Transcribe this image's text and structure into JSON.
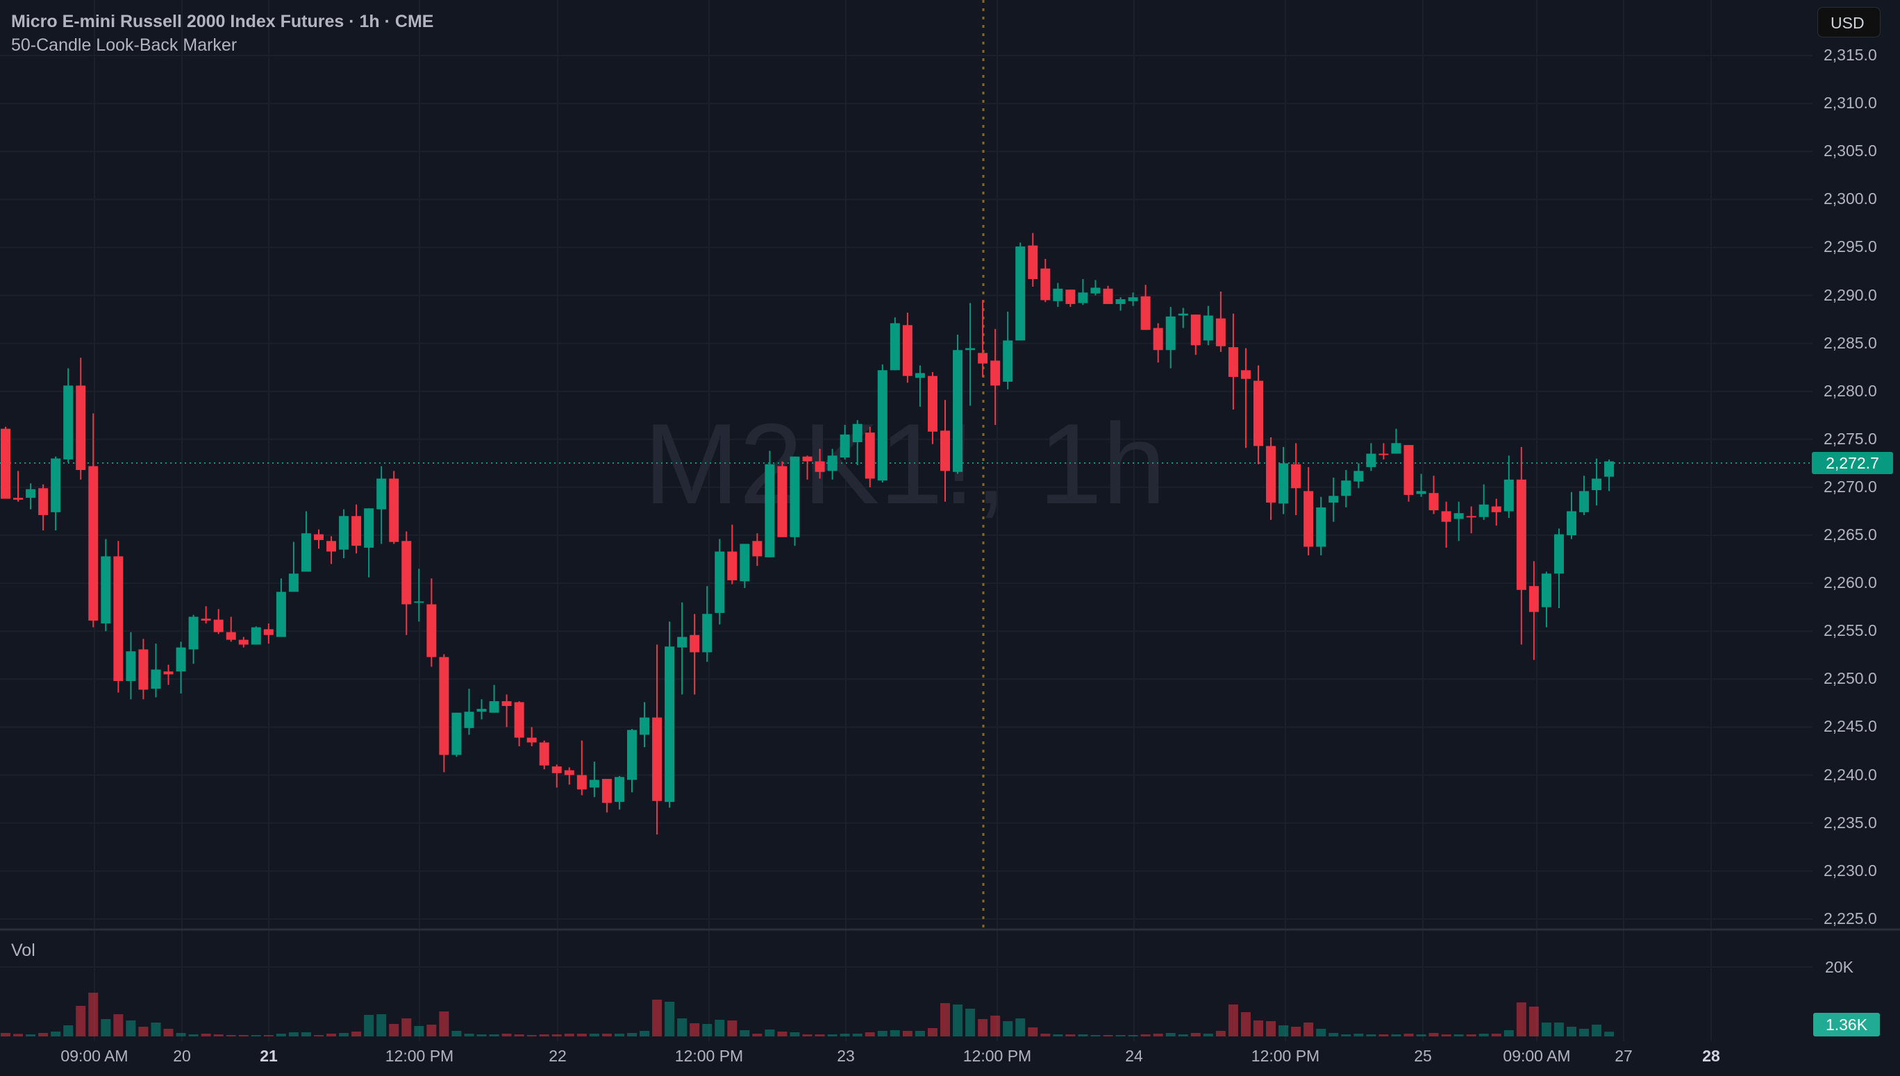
{
  "header": {
    "title": "Micro E-mini Russell 2000 Index Futures · 1h · CME",
    "indicator": "50-Candle Look-Back Marker",
    "currency_button": "USD"
  },
  "watermark": "M2K1!, 1h",
  "volume_pane": {
    "title": "Vol",
    "scale_label": "20K",
    "last_volume_label": "1.36K"
  },
  "price_axis": {
    "ticks": [
      "2,315.0",
      "2,310.0",
      "2,305.0",
      "2,300.0",
      "2,295.0",
      "2,290.0",
      "2,285.0",
      "2,280.0",
      "2,275.0",
      "2,270.0",
      "2,265.0",
      "2,260.0",
      "2,255.0",
      "2,250.0",
      "2,245.0",
      "2,240.0",
      "2,235.0",
      "2,230.0",
      "2,225.0"
    ],
    "last_price_label": "2,272.7"
  },
  "time_axis": {
    "labels": [
      {
        "text": "09:00 AM",
        "bold": false
      },
      {
        "text": "20",
        "bold": false
      },
      {
        "text": "21",
        "bold": true
      },
      {
        "text": "12:00 PM",
        "bold": false
      },
      {
        "text": "22",
        "bold": false
      },
      {
        "text": "12:00 PM",
        "bold": false
      },
      {
        "text": "23",
        "bold": false
      },
      {
        "text": "12:00 PM",
        "bold": false
      },
      {
        "text": "24",
        "bold": false
      },
      {
        "text": "12:00 PM",
        "bold": false
      },
      {
        "text": "25",
        "bold": false
      },
      {
        "text": "09:00 AM",
        "bold": false
      },
      {
        "text": "27",
        "bold": false
      },
      {
        "text": "28",
        "bold": true
      }
    ]
  },
  "colors": {
    "background": "#131722",
    "up": "#089981",
    "down": "#f23645",
    "marker": "#8a6a1c",
    "grid": "#1c202b"
  },
  "chart_data": {
    "type": "candlestick",
    "interval": "1h",
    "ylim": [
      2225,
      2315
    ],
    "last_price": 2272.7,
    "lookback_marker_candle_index": 78,
    "candles_ohlc": [
      [
        2276.1,
        2276.3,
        2268.8,
        2268.8
      ],
      [
        2268.9,
        2271.7,
        2268.5,
        2268.7
      ],
      [
        2268.9,
        2270.4,
        2267.7,
        2269.8
      ],
      [
        2269.9,
        2270.3,
        2265.5,
        2267.1
      ],
      [
        2267.4,
        2273.2,
        2265.5,
        2273.0
      ],
      [
        2272.9,
        2282.4,
        2272.6,
        2280.6
      ],
      [
        2280.6,
        2283.5,
        2270.8,
        2271.8
      ],
      [
        2272.2,
        2277.7,
        2255.4,
        2256.1
      ],
      [
        2255.8,
        2264.6,
        2255.0,
        2262.8
      ],
      [
        2262.8,
        2264.4,
        2248.6,
        2249.8
      ],
      [
        2249.8,
        2254.9,
        2247.9,
        2252.9
      ],
      [
        2253.1,
        2254.2,
        2247.9,
        2248.9
      ],
      [
        2249.0,
        2253.7,
        2248.1,
        2251.0
      ],
      [
        2250.8,
        2251.5,
        2249.4,
        2250.5
      ],
      [
        2250.8,
        2253.9,
        2248.5,
        2253.3
      ],
      [
        2253.1,
        2256.7,
        2251.6,
        2256.5
      ],
      [
        2256.3,
        2257.6,
        2255.8,
        2256.1
      ],
      [
        2256.2,
        2257.3,
        2254.7,
        2254.9
      ],
      [
        2254.9,
        2256.5,
        2253.9,
        2254.1
      ],
      [
        2254.1,
        2254.4,
        2253.3,
        2253.6
      ],
      [
        2253.6,
        2255.5,
        2253.6,
        2255.4
      ],
      [
        2255.2,
        2255.8,
        2253.7,
        2254.6
      ],
      [
        2254.4,
        2260.5,
        2254.4,
        2259.1
      ],
      [
        2259.1,
        2264.3,
        2259.1,
        2261.0
      ],
      [
        2261.2,
        2267.5,
        2261.2,
        2265.2
      ],
      [
        2265.1,
        2265.6,
        2263.6,
        2264.5
      ],
      [
        2264.4,
        2264.9,
        2262.0,
        2263.3
      ],
      [
        2263.5,
        2267.7,
        2262.6,
        2267.0
      ],
      [
        2267.0,
        2268.2,
        2263.1,
        2263.9
      ],
      [
        2263.7,
        2267.8,
        2260.6,
        2267.8
      ],
      [
        2267.7,
        2272.2,
        2264.1,
        2270.9
      ],
      [
        2270.9,
        2271.7,
        2264.1,
        2264.3
      ],
      [
        2264.4,
        2265.4,
        2254.6,
        2257.8
      ],
      [
        2258.0,
        2261.5,
        2256.0,
        2258.1
      ],
      [
        2257.8,
        2260.5,
        2251.3,
        2252.3
      ],
      [
        2252.3,
        2252.6,
        2240.3,
        2242.1
      ],
      [
        2242.1,
        2246.5,
        2241.9,
        2246.5
      ],
      [
        2244.9,
        2249.0,
        2244.2,
        2246.6
      ],
      [
        2246.6,
        2247.9,
        2245.8,
        2246.9
      ],
      [
        2246.5,
        2249.4,
        2246.5,
        2247.7
      ],
      [
        2247.7,
        2248.4,
        2245.0,
        2247.2
      ],
      [
        2247.6,
        2247.7,
        2243.0,
        2243.9
      ],
      [
        2243.9,
        2245.0,
        2243.0,
        2243.4
      ],
      [
        2243.4,
        2243.6,
        2240.6,
        2241.0
      ],
      [
        2240.9,
        2241.1,
        2238.7,
        2240.2
      ],
      [
        2240.5,
        2240.8,
        2239.0,
        2240.0
      ],
      [
        2240.0,
        2243.6,
        2237.9,
        2238.5
      ],
      [
        2238.7,
        2241.4,
        2237.7,
        2239.5
      ],
      [
        2239.6,
        2239.6,
        2236.1,
        2237.1
      ],
      [
        2237.2,
        2239.9,
        2236.4,
        2239.8
      ],
      [
        2239.5,
        2244.8,
        2238.2,
        2244.7
      ],
      [
        2244.2,
        2247.6,
        2242.9,
        2246.0
      ],
      [
        2246.0,
        2253.6,
        2233.8,
        2237.3
      ],
      [
        2237.2,
        2256.0,
        2236.6,
        2253.4
      ],
      [
        2253.3,
        2258.0,
        2248.4,
        2254.4
      ],
      [
        2254.6,
        2256.8,
        2248.4,
        2252.8
      ],
      [
        2252.8,
        2259.7,
        2251.8,
        2256.8
      ],
      [
        2256.9,
        2264.6,
        2255.7,
        2263.3
      ],
      [
        2263.3,
        2266.1,
        2259.9,
        2260.3
      ],
      [
        2260.2,
        2264.1,
        2259.5,
        2264.1
      ],
      [
        2264.4,
        2265.2,
        2261.8,
        2262.8
      ],
      [
        2262.7,
        2273.8,
        2262.7,
        2272.4
      ],
      [
        2272.2,
        2272.7,
        2264.8,
        2264.8
      ],
      [
        2264.8,
        2273.2,
        2263.9,
        2273.2
      ],
      [
        2273.2,
        2273.3,
        2270.8,
        2272.7
      ],
      [
        2272.7,
        2274.0,
        2270.9,
        2271.6
      ],
      [
        2271.7,
        2274.0,
        2270.8,
        2273.3
      ],
      [
        2273.1,
        2276.5,
        2272.9,
        2275.5
      ],
      [
        2274.7,
        2277.0,
        2272.3,
        2276.6
      ],
      [
        2275.7,
        2276.3,
        2270.0,
        2270.9
      ],
      [
        2270.7,
        2282.8,
        2270.5,
        2282.2
      ],
      [
        2282.2,
        2287.7,
        2282.2,
        2287.1
      ],
      [
        2286.9,
        2288.2,
        2280.9,
        2281.6
      ],
      [
        2281.4,
        2282.7,
        2278.4,
        2281.9
      ],
      [
        2281.6,
        2282.0,
        2274.5,
        2275.8
      ],
      [
        2275.9,
        2279.1,
        2268.5,
        2271.7
      ],
      [
        2271.6,
        2285.9,
        2271.4,
        2284.3
      ],
      [
        2284.3,
        2289.2,
        2278.5,
        2284.5
      ],
      [
        2284.0,
        2289.5,
        2281.5,
        2282.9
      ],
      [
        2283.2,
        2286.5,
        2276.5,
        2280.6
      ],
      [
        2281.0,
        2288.3,
        2280.2,
        2285.3
      ],
      [
        2285.3,
        2295.5,
        2285.3,
        2295.1
      ],
      [
        2295.2,
        2296.5,
        2290.9,
        2291.7
      ],
      [
        2292.8,
        2293.8,
        2289.3,
        2289.5
      ],
      [
        2289.4,
        2291.3,
        2288.8,
        2290.7
      ],
      [
        2290.6,
        2290.6,
        2288.8,
        2289.1
      ],
      [
        2289.2,
        2291.7,
        2289.0,
        2290.3
      ],
      [
        2290.2,
        2291.6,
        2290.0,
        2290.8
      ],
      [
        2290.7,
        2291.0,
        2289.1,
        2289.1
      ],
      [
        2289.1,
        2289.8,
        2288.4,
        2289.6
      ],
      [
        2289.4,
        2290.3,
        2288.9,
        2289.8
      ],
      [
        2289.9,
        2291.1,
        2286.4,
        2286.4
      ],
      [
        2286.6,
        2287.1,
        2283.0,
        2284.3
      ],
      [
        2284.3,
        2288.8,
        2282.4,
        2287.8
      ],
      [
        2287.9,
        2288.7,
        2286.6,
        2288.1
      ],
      [
        2288.0,
        2288.0,
        2283.8,
        2284.8
      ],
      [
        2285.3,
        2288.9,
        2284.8,
        2287.9
      ],
      [
        2287.6,
        2290.4,
        2284.1,
        2284.7
      ],
      [
        2284.6,
        2288.1,
        2278.1,
        2281.5
      ],
      [
        2282.2,
        2284.5,
        2274.1,
        2281.3
      ],
      [
        2281.1,
        2282.7,
        2272.4,
        2274.3
      ],
      [
        2274.3,
        2275.2,
        2266.6,
        2268.4
      ],
      [
        2268.3,
        2274.2,
        2267.2,
        2272.5
      ],
      [
        2272.4,
        2274.6,
        2267.1,
        2269.9
      ],
      [
        2269.6,
        2272.1,
        2262.9,
        2263.8
      ],
      [
        2263.8,
        2269.0,
        2262.9,
        2267.9
      ],
      [
        2268.4,
        2271.0,
        2266.4,
        2269.1
      ],
      [
        2269.1,
        2271.8,
        2267.9,
        2270.7
      ],
      [
        2270.6,
        2272.5,
        2269.9,
        2271.7
      ],
      [
        2272.1,
        2274.6,
        2271.7,
        2273.5
      ],
      [
        2273.5,
        2274.6,
        2272.9,
        2273.4
      ],
      [
        2273.5,
        2276.1,
        2273.5,
        2274.6
      ],
      [
        2274.4,
        2274.4,
        2268.5,
        2269.2
      ],
      [
        2269.3,
        2271.4,
        2269.0,
        2269.6
      ],
      [
        2269.4,
        2271.2,
        2267.2,
        2267.6
      ],
      [
        2267.5,
        2268.5,
        2263.7,
        2266.4
      ],
      [
        2266.7,
        2268.5,
        2264.4,
        2267.3
      ],
      [
        2267.0,
        2268.0,
        2265.2,
        2266.9
      ],
      [
        2266.9,
        2270.3,
        2266.6,
        2268.2
      ],
      [
        2268.0,
        2268.8,
        2266.0,
        2267.4
      ],
      [
        2267.5,
        2273.3,
        2266.8,
        2270.8
      ],
      [
        2270.8,
        2274.2,
        2253.6,
        2259.3
      ],
      [
        2259.7,
        2262.3,
        2252.0,
        2257.0
      ],
      [
        2257.5,
        2261.2,
        2255.4,
        2261.0
      ],
      [
        2261.0,
        2265.7,
        2257.4,
        2265.1
      ],
      [
        2265.0,
        2269.5,
        2264.6,
        2267.5
      ],
      [
        2267.4,
        2271.2,
        2267.1,
        2269.6
      ],
      [
        2269.7,
        2273.0,
        2268.1,
        2270.9
      ],
      [
        2271.1,
        2272.9,
        2269.6,
        2272.7
      ]
    ],
    "volume": [
      1000,
      730,
      600,
      1000,
      1400,
      3200,
      8800,
      12600,
      5000,
      6400,
      4600,
      2800,
      4000,
      2200,
      1000,
      600,
      800,
      600,
      400,
      400,
      400,
      400,
      800,
      1200,
      1200,
      400,
      800,
      1000,
      1400,
      6200,
      6400,
      3600,
      5200,
      3000,
      3400,
      7200,
      1600,
      800,
      600,
      600,
      800,
      600,
      400,
      600,
      600,
      800,
      800,
      800,
      800,
      800,
      1000,
      1600,
      10600,
      10000,
      5200,
      3800,
      3600,
      4800,
      4600,
      1800,
      800,
      2000,
      1400,
      1200,
      600,
      600,
      600,
      800,
      800,
      1200,
      1600,
      1800,
      1600,
      1600,
      2400,
      9600,
      9200,
      8000,
      5000,
      6000,
      4400,
      5200,
      2600,
      800,
      600,
      600,
      600,
      400,
      400,
      400,
      400,
      600,
      800,
      1000,
      600,
      1000,
      800,
      1600,
      9200,
      7000,
      4600,
      4400,
      3200,
      2800,
      4000,
      2200,
      1000,
      600,
      800,
      600,
      600,
      600,
      800,
      600,
      1000,
      600,
      600,
      600,
      800,
      800,
      1800,
      9800,
      8600,
      4000,
      4000,
      2800,
      2200,
      3400,
      1360
    ],
    "volume_scale_max_label_value": 20000
  }
}
